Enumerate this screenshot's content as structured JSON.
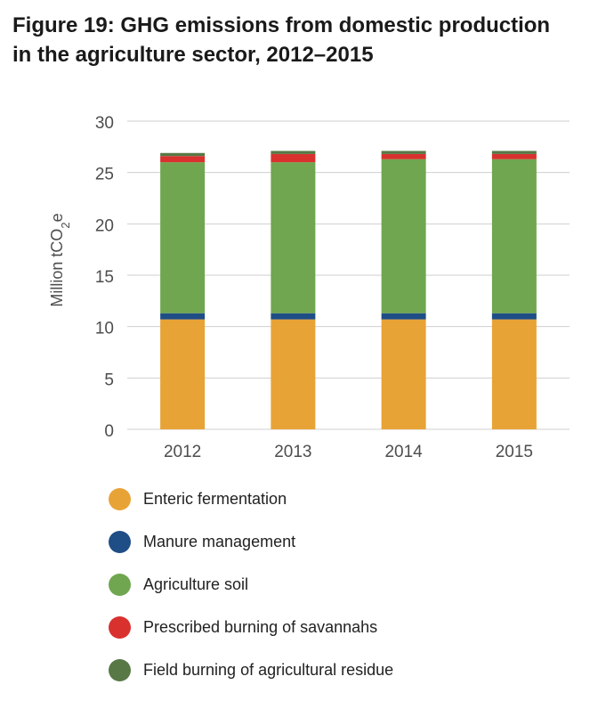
{
  "title": {
    "line1": "Figure 19: GHG emissions from domestic production",
    "line2": "in the agriculture sector, 2012–2015"
  },
  "chart_data": {
    "type": "bar",
    "stacked": true,
    "title": "Figure 19: GHG emissions from domestic production in the agriculture sector, 2012–2015",
    "xlabel": "",
    "ylabel": "Million tCO2e",
    "ylim": [
      0,
      30
    ],
    "yticks": [
      0,
      5,
      10,
      15,
      20,
      25,
      30
    ],
    "grid": true,
    "legend_position": "bottom",
    "categories": [
      "2012",
      "2013",
      "2014",
      "2015"
    ],
    "series": [
      {
        "name": "Enteric fermentation",
        "color": "#E8A336",
        "values": [
          10.7,
          10.7,
          10.7,
          10.7
        ]
      },
      {
        "name": "Manure management",
        "color": "#1F4E86",
        "values": [
          0.6,
          0.6,
          0.6,
          0.6
        ]
      },
      {
        "name": "Agriculture soil",
        "color": "#70A64F",
        "values": [
          14.7,
          14.7,
          15.0,
          15.0
        ]
      },
      {
        "name": "Prescribed burning of savannahs",
        "color": "#D9312E",
        "values": [
          0.6,
          0.8,
          0.5,
          0.5
        ]
      },
      {
        "name": "Field burning of agricultural residue",
        "color": "#587846",
        "values": [
          0.3,
          0.3,
          0.3,
          0.3
        ]
      }
    ]
  }
}
